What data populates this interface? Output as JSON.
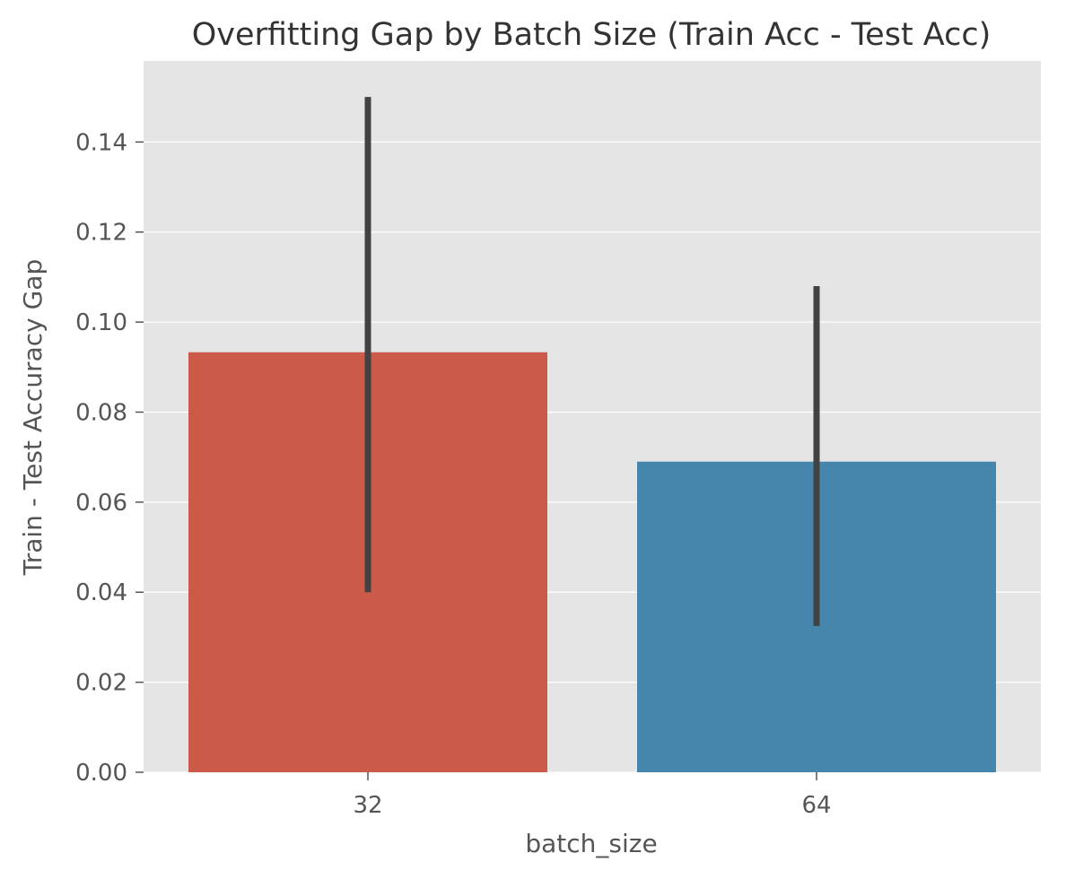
{
  "chart_data": {
    "type": "bar",
    "title": "Overfitting Gap by Batch Size (Train Acc - Test Acc)",
    "xlabel": "batch_size",
    "ylabel": "Train - Test Accuracy Gap",
    "categories": [
      "32",
      "64"
    ],
    "values": [
      0.0933,
      0.069
    ],
    "error_bars": [
      {
        "low": 0.04,
        "high": 0.15
      },
      {
        "low": 0.0325,
        "high": 0.108
      }
    ],
    "colors": [
      "#cc5a49",
      "#4686ad"
    ],
    "ylim": [
      0,
      0.158
    ],
    "yticks": [
      "0.00",
      "0.02",
      "0.04",
      "0.06",
      "0.08",
      "0.10",
      "0.12",
      "0.14"
    ],
    "grid": true,
    "legend": "none"
  }
}
